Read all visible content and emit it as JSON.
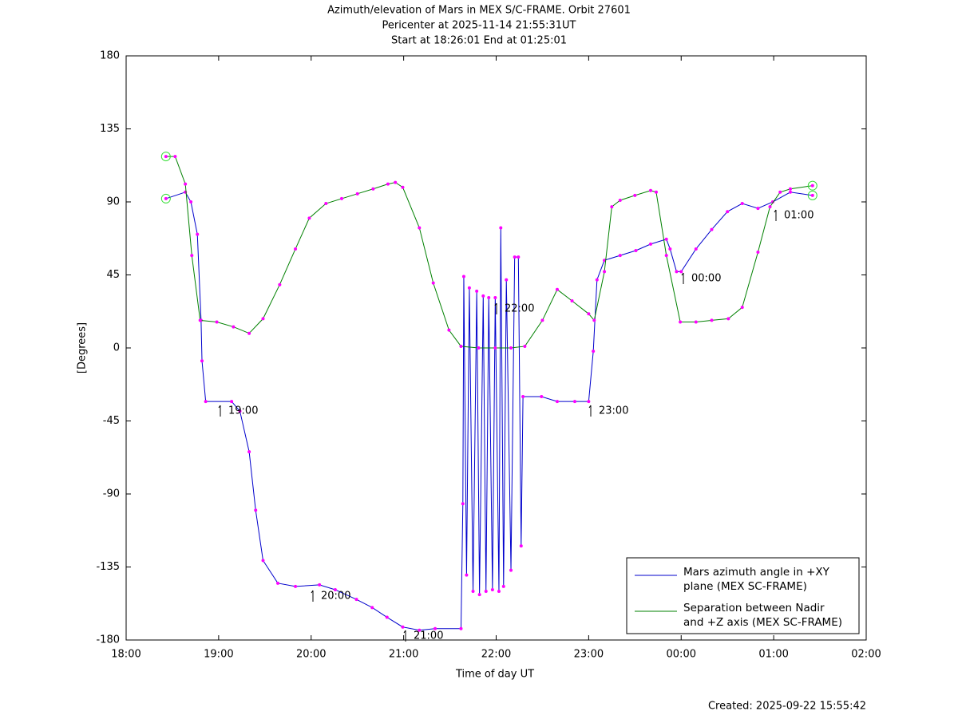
{
  "chart_data": {
    "type": "line",
    "title": "Azimuth/elevation of Mars in MEX S/C-FRAME.  Orbit 27601",
    "subtitle": [
      "Pericenter at 2025-11-14 21:55:31UT",
      "Start at 18:26:01 End at 01:25:01"
    ],
    "xlabel": "Time of day UT",
    "ylabel": "[Degrees]",
    "footer": "Created: 2025-09-22 15:55:42",
    "xlim": [
      18,
      26
    ],
    "xticks": [
      {
        "value": 18,
        "label": "18:00"
      },
      {
        "value": 19,
        "label": "19:00"
      },
      {
        "value": 20,
        "label": "20:00"
      },
      {
        "value": 21,
        "label": "21:00"
      },
      {
        "value": 22,
        "label": "22:00"
      },
      {
        "value": 23,
        "label": "23:00"
      },
      {
        "value": 24,
        "label": "00:00"
      },
      {
        "value": 25,
        "label": "01:00"
      },
      {
        "value": 26,
        "label": "02:00"
      }
    ],
    "ylim": [
      -180,
      180
    ],
    "yticks": [
      -180,
      -135,
      -90,
      -45,
      0,
      45,
      90,
      135,
      180
    ],
    "legend": "lower right",
    "annotations": [
      "19:00",
      "20:00",
      "21:00",
      "22:00",
      "23:00",
      "00:00",
      "01:00"
    ],
    "series": [
      {
        "name": "Mars azimuth angle in +XY plane (MEX SC-FRAME)",
        "color": "#0000cc",
        "x": [
          18.43,
          18.64,
          18.7,
          18.77,
          18.81,
          18.82,
          18.86,
          19.14,
          19.23,
          19.33,
          19.4,
          19.48,
          19.64,
          19.83,
          20.09,
          20.26,
          20.49,
          20.66,
          20.82,
          20.99,
          21.17,
          21.34,
          21.62,
          21.64,
          21.65,
          21.68,
          21.71,
          21.75,
          21.79,
          21.82,
          21.86,
          21.89,
          21.92,
          21.96,
          21.99,
          22.03,
          22.05,
          22.08,
          22.11,
          22.16,
          22.2,
          22.24,
          22.27,
          22.29,
          22.49,
          22.66,
          22.85,
          23.0,
          23.05,
          23.09,
          23.17,
          23.34,
          23.51,
          23.67,
          23.84,
          23.88,
          23.95,
          24.0,
          24.16,
          24.33,
          24.5,
          24.66,
          24.83,
          24.99,
          25.18,
          25.42
        ],
        "values": [
          92,
          96,
          90,
          70,
          17,
          -8,
          -33,
          -33,
          -39,
          -64,
          -100,
          -131,
          -145,
          -147,
          -146,
          -149,
          -155,
          -160,
          -166,
          -172,
          -174,
          -173,
          -173,
          -96,
          44,
          -140,
          37,
          -150,
          35,
          -152,
          32,
          -150,
          31,
          -149,
          31,
          -150,
          74,
          -147,
          42,
          -137,
          56,
          56,
          -122,
          -30,
          -30,
          -33,
          -33,
          -33,
          -2,
          42,
          54,
          57,
          60,
          64,
          67,
          61,
          47,
          47,
          61,
          73,
          84,
          89,
          86,
          90,
          96,
          94
        ]
      },
      {
        "name": "Separation between Nadir and +Z axis (MEX SC-FRAME)",
        "color": "#008000",
        "x": [
          18.43,
          18.53,
          18.64,
          18.71,
          18.8,
          18.98,
          19.16,
          19.33,
          19.48,
          19.66,
          19.83,
          19.98,
          20.16,
          20.33,
          20.5,
          20.67,
          20.83,
          20.91,
          20.99,
          21.17,
          21.32,
          21.49,
          21.62,
          21.81,
          21.99,
          22.16,
          22.31,
          22.5,
          22.66,
          22.82,
          23.0,
          23.06,
          23.17,
          23.25,
          23.34,
          23.5,
          23.67,
          23.73,
          23.84,
          23.99,
          24.16,
          24.33,
          24.51,
          24.66,
          24.83,
          24.96,
          25.07,
          25.18,
          25.42
        ],
        "values": [
          118,
          118,
          101,
          57,
          17,
          16,
          13,
          9,
          18,
          39,
          61,
          80,
          89,
          92,
          95,
          98,
          101,
          102,
          99,
          74,
          40,
          11,
          1,
          0,
          0,
          0,
          1,
          17,
          36,
          29,
          21,
          17,
          47,
          87,
          91,
          94,
          97,
          96,
          57,
          16,
          16,
          17,
          18,
          25,
          59,
          87,
          96,
          98,
          100
        ]
      }
    ]
  }
}
